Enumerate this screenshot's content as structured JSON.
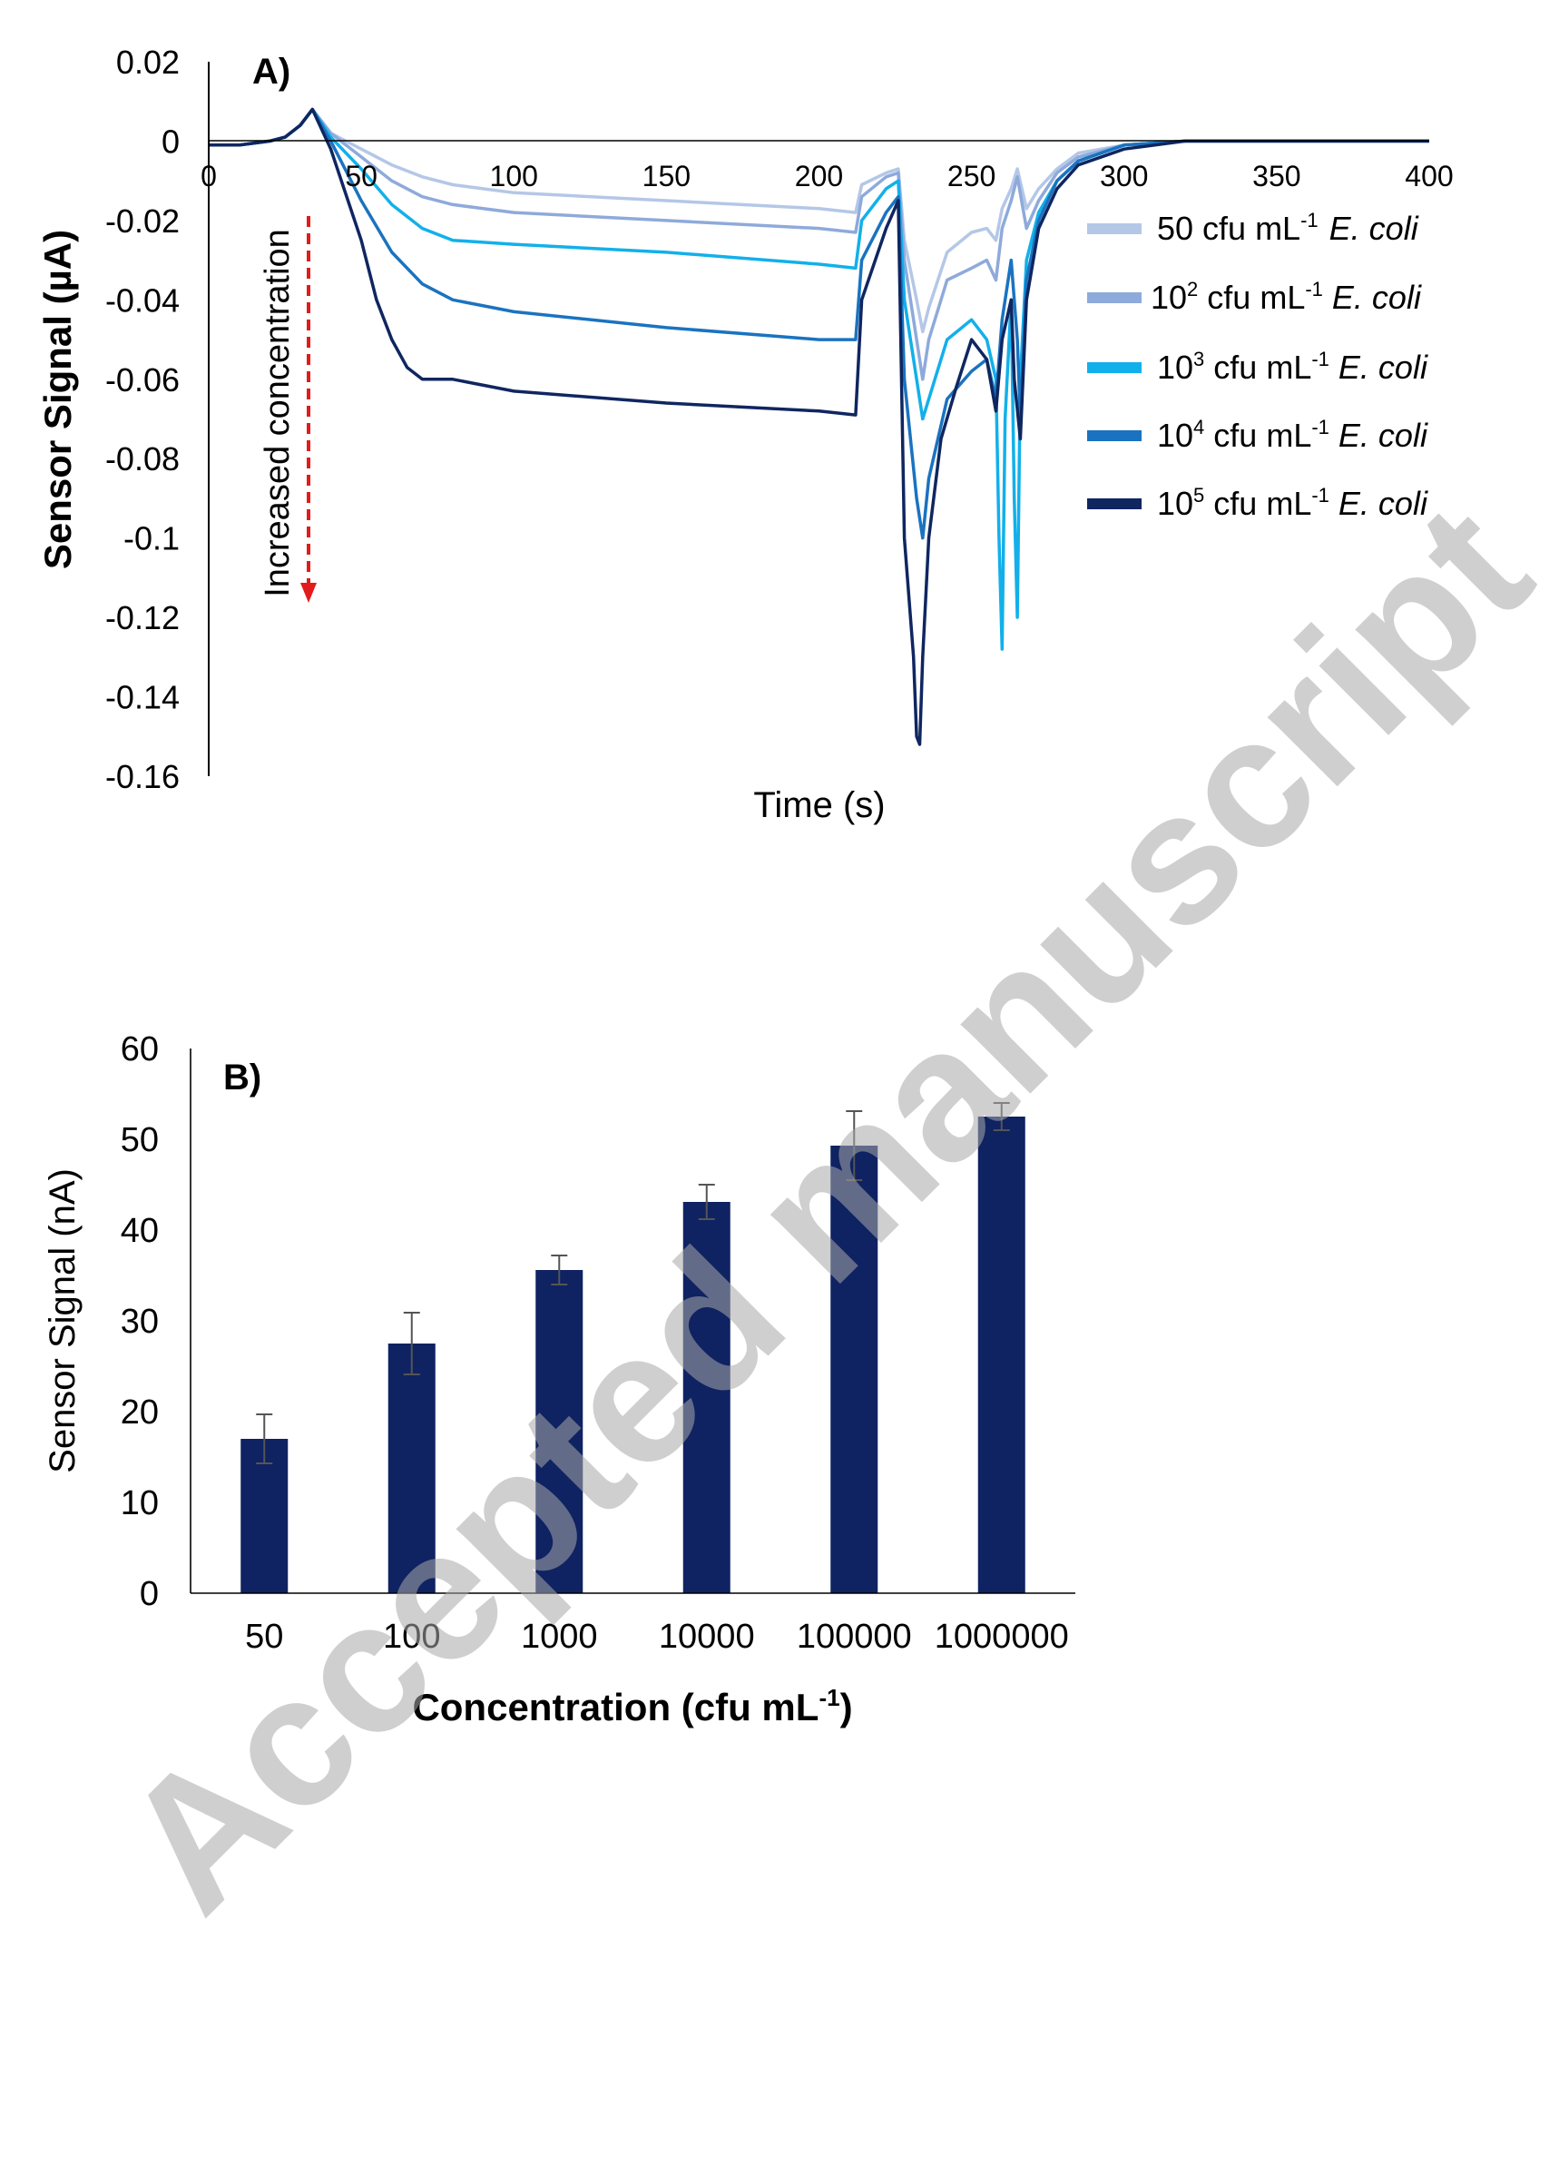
{
  "watermark": "Accepted manuscript",
  "chart_data": [
    {
      "type": "line",
      "panel_label": "A)",
      "xlabel": "Time (s)",
      "ylabel": "Sensor Signal (µA)",
      "xlim": [
        0,
        400
      ],
      "ylim": [
        -0.16,
        0.02
      ],
      "x_ticks": [
        "0",
        "50",
        "100",
        "150",
        "200",
        "250",
        "300",
        "350",
        "400"
      ],
      "y_ticks": [
        "0.02",
        "0",
        "-0.02",
        "-0.04",
        "-0.06",
        "-0.08",
        "-0.1",
        "-0.12",
        "-0.14",
        "-0.16"
      ],
      "grid": false,
      "legend_position": "right",
      "annotation": "Increased concentration",
      "series": [
        {
          "name": "50 cfu mL-1 E. coli",
          "base": "50 cfu mL",
          "sup": "-1",
          "species": "E. coli",
          "color": "#b4c7e7",
          "points": [
            [
              0,
              -0.001
            ],
            [
              10,
              -0.001
            ],
            [
              20,
              0
            ],
            [
              25,
              0.001
            ],
            [
              30,
              0.004
            ],
            [
              34,
              0.008
            ],
            [
              40,
              0.002
            ],
            [
              50,
              -0.002
            ],
            [
              60,
              -0.006
            ],
            [
              70,
              -0.009
            ],
            [
              80,
              -0.011
            ],
            [
              100,
              -0.013
            ],
            [
              150,
              -0.015
            ],
            [
              200,
              -0.017
            ],
            [
              212,
              -0.018
            ],
            [
              214,
              -0.011
            ],
            [
              222,
              -0.008
            ],
            [
              226,
              -0.007
            ],
            [
              228,
              -0.025
            ],
            [
              232,
              -0.04
            ],
            [
              234,
              -0.048
            ],
            [
              236,
              -0.042
            ],
            [
              242,
              -0.028
            ],
            [
              250,
              -0.023
            ],
            [
              255,
              -0.022
            ],
            [
              258,
              -0.025
            ],
            [
              260,
              -0.017
            ],
            [
              263,
              -0.012
            ],
            [
              265,
              -0.007
            ],
            [
              268,
              -0.017
            ],
            [
              272,
              -0.012
            ],
            [
              278,
              -0.007
            ],
            [
              285,
              -0.003
            ],
            [
              300,
              -0.001
            ],
            [
              320,
              0
            ],
            [
              400,
              0
            ]
          ]
        },
        {
          "name": "10^2 cfu mL-1 E. coli",
          "base": "10",
          "exp": "2",
          "tail": " cfu mL",
          "sup": "-1",
          "species": "E. coli",
          "color": "#8eaadb",
          "points": [
            [
              0,
              -0.001
            ],
            [
              10,
              -0.001
            ],
            [
              20,
              0
            ],
            [
              25,
              0.001
            ],
            [
              30,
              0.004
            ],
            [
              34,
              0.008
            ],
            [
              40,
              0.002
            ],
            [
              50,
              -0.004
            ],
            [
              60,
              -0.01
            ],
            [
              70,
              -0.014
            ],
            [
              80,
              -0.016
            ],
            [
              100,
              -0.018
            ],
            [
              150,
              -0.02
            ],
            [
              200,
              -0.022
            ],
            [
              212,
              -0.023
            ],
            [
              214,
              -0.014
            ],
            [
              222,
              -0.009
            ],
            [
              226,
              -0.008
            ],
            [
              228,
              -0.03
            ],
            [
              232,
              -0.05
            ],
            [
              234,
              -0.06
            ],
            [
              236,
              -0.05
            ],
            [
              242,
              -0.035
            ],
            [
              250,
              -0.032
            ],
            [
              255,
              -0.03
            ],
            [
              258,
              -0.035
            ],
            [
              260,
              -0.022
            ],
            [
              263,
              -0.015
            ],
            [
              265,
              -0.009
            ],
            [
              268,
              -0.022
            ],
            [
              272,
              -0.015
            ],
            [
              278,
              -0.008
            ],
            [
              285,
              -0.004
            ],
            [
              300,
              -0.001
            ],
            [
              320,
              0
            ],
            [
              400,
              0
            ]
          ]
        },
        {
          "name": "10^3 cfu mL-1 E. coli",
          "base": "10",
          "exp": "3",
          "tail": " cfu mL",
          "sup": "-1",
          "species": "E. coli",
          "color": "#12b0ea",
          "points": [
            [
              0,
              -0.001
            ],
            [
              10,
              -0.001
            ],
            [
              20,
              0
            ],
            [
              25,
              0.001
            ],
            [
              30,
              0.004
            ],
            [
              34,
              0.008
            ],
            [
              40,
              0.001
            ],
            [
              50,
              -0.007
            ],
            [
              60,
              -0.016
            ],
            [
              70,
              -0.022
            ],
            [
              80,
              -0.025
            ],
            [
              100,
              -0.026
            ],
            [
              150,
              -0.028
            ],
            [
              200,
              -0.031
            ],
            [
              212,
              -0.032
            ],
            [
              214,
              -0.02
            ],
            [
              222,
              -0.012
            ],
            [
              226,
              -0.01
            ],
            [
              228,
              -0.04
            ],
            [
              232,
              -0.06
            ],
            [
              234,
              -0.07
            ],
            [
              236,
              -0.065
            ],
            [
              242,
              -0.05
            ],
            [
              250,
              -0.045
            ],
            [
              255,
              -0.05
            ],
            [
              258,
              -0.06
            ],
            [
              259,
              -0.1
            ],
            [
              260,
              -0.128
            ],
            [
              261,
              -0.07
            ],
            [
              263,
              -0.04
            ],
            [
              264,
              -0.09
            ],
            [
              265,
              -0.12
            ],
            [
              266,
              -0.06
            ],
            [
              268,
              -0.03
            ],
            [
              272,
              -0.018
            ],
            [
              278,
              -0.01
            ],
            [
              285,
              -0.005
            ],
            [
              300,
              -0.001
            ],
            [
              320,
              0
            ],
            [
              400,
              0
            ]
          ]
        },
        {
          "name": "10^4 cfu mL-1 E. coli",
          "base": "10",
          "exp": "4",
          "tail": " cfu mL",
          "sup": "-1",
          "species": "E. coli",
          "color": "#1a73c0",
          "points": [
            [
              0,
              -0.001
            ],
            [
              10,
              -0.001
            ],
            [
              20,
              0
            ],
            [
              25,
              0.001
            ],
            [
              30,
              0.004
            ],
            [
              34,
              0.008
            ],
            [
              40,
              0
            ],
            [
              50,
              -0.015
            ],
            [
              60,
              -0.028
            ],
            [
              70,
              -0.036
            ],
            [
              80,
              -0.04
            ],
            [
              100,
              -0.043
            ],
            [
              150,
              -0.047
            ],
            [
              200,
              -0.05
            ],
            [
              212,
              -0.05
            ],
            [
              214,
              -0.03
            ],
            [
              222,
              -0.018
            ],
            [
              226,
              -0.014
            ],
            [
              228,
              -0.06
            ],
            [
              232,
              -0.09
            ],
            [
              234,
              -0.1
            ],
            [
              236,
              -0.085
            ],
            [
              242,
              -0.065
            ],
            [
              250,
              -0.058
            ],
            [
              255,
              -0.055
            ],
            [
              258,
              -0.065
            ],
            [
              260,
              -0.045
            ],
            [
              263,
              -0.03
            ],
            [
              265,
              -0.05
            ],
            [
              266,
              -0.07
            ],
            [
              268,
              -0.035
            ],
            [
              272,
              -0.02
            ],
            [
              278,
              -0.01
            ],
            [
              285,
              -0.005
            ],
            [
              300,
              -0.001
            ],
            [
              320,
              0
            ],
            [
              400,
              0
            ]
          ]
        },
        {
          "name": "10^5 cfu mL-1 E. coli",
          "base": "10",
          "exp": "5",
          "tail": " cfu mL",
          "sup": "-1",
          "species": "E. coli",
          "color": "#0f2660",
          "points": [
            [
              0,
              -0.001
            ],
            [
              10,
              -0.001
            ],
            [
              20,
              0
            ],
            [
              25,
              0.001
            ],
            [
              30,
              0.004
            ],
            [
              34,
              0.008
            ],
            [
              40,
              -0.002
            ],
            [
              50,
              -0.025
            ],
            [
              55,
              -0.04
            ],
            [
              60,
              -0.05
            ],
            [
              65,
              -0.057
            ],
            [
              70,
              -0.06
            ],
            [
              80,
              -0.06
            ],
            [
              100,
              -0.063
            ],
            [
              150,
              -0.066
            ],
            [
              200,
              -0.068
            ],
            [
              212,
              -0.069
            ],
            [
              214,
              -0.04
            ],
            [
              222,
              -0.022
            ],
            [
              226,
              -0.015
            ],
            [
              228,
              -0.1
            ],
            [
              231,
              -0.13
            ],
            [
              232,
              -0.15
            ],
            [
              233,
              -0.152
            ],
            [
              234,
              -0.13
            ],
            [
              236,
              -0.1
            ],
            [
              240,
              -0.075
            ],
            [
              245,
              -0.062
            ],
            [
              250,
              -0.05
            ],
            [
              255,
              -0.055
            ],
            [
              258,
              -0.068
            ],
            [
              260,
              -0.05
            ],
            [
              263,
              -0.04
            ],
            [
              264,
              -0.06
            ],
            [
              266,
              -0.075
            ],
            [
              268,
              -0.04
            ],
            [
              272,
              -0.022
            ],
            [
              278,
              -0.012
            ],
            [
              285,
              -0.006
            ],
            [
              300,
              -0.002
            ],
            [
              320,
              0
            ],
            [
              400,
              0
            ]
          ]
        }
      ]
    },
    {
      "type": "bar",
      "panel_label": "B)",
      "xlabel": "Concentration (cfu mL",
      "xlabel_sup": "-1",
      "xlabel_close": ")",
      "ylabel": "Sensor Signal (nA)",
      "ylim": [
        0,
        60
      ],
      "y_ticks": [
        "0",
        "10",
        "20",
        "30",
        "40",
        "50",
        "60"
      ],
      "grid": false,
      "color": "#0f2262",
      "categories": [
        "50",
        "100",
        "1000",
        "10000",
        "100000",
        "1000000"
      ],
      "values": [
        17,
        27.5,
        35.6,
        43.1,
        49.3,
        52.5
      ],
      "errors": [
        2.7,
        3.4,
        1.6,
        1.9,
        3.8,
        1.5
      ]
    }
  ]
}
